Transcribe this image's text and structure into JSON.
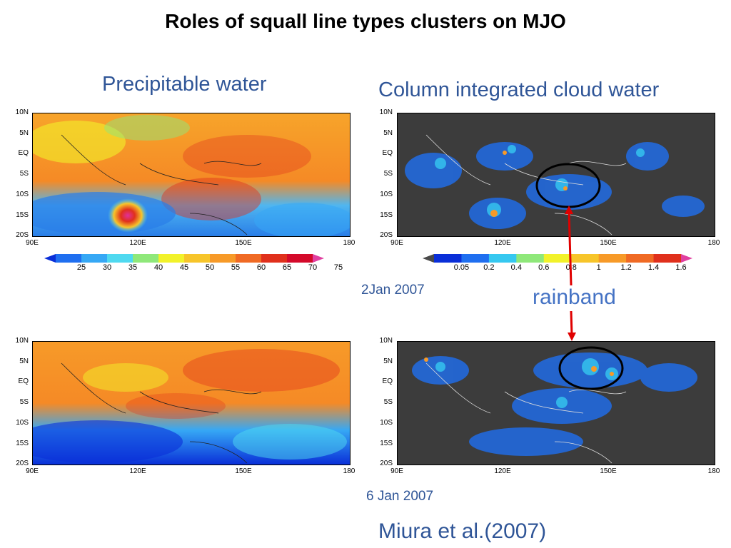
{
  "title": "Roles of squall line types clusters on MJO",
  "headings": {
    "left": "Precipitable water",
    "right": "Column integrated cloud water"
  },
  "axis": {
    "lat_labels": [
      "10N",
      "5N",
      "EQ",
      "5S",
      "10S",
      "15S",
      "20S"
    ],
    "lon_labels": [
      "90E",
      "120E",
      "150E",
      "180"
    ]
  },
  "colorbars": {
    "pw": {
      "labels": [
        "25",
        "30",
        "35",
        "40",
        "45",
        "50",
        "55",
        "60",
        "65",
        "70",
        "75"
      ],
      "colors": [
        "#0a2fd8",
        "#1f6ff0",
        "#36a8f5",
        "#4fd9f0",
        "#8fe87a",
        "#f2f22a",
        "#f7c52a",
        "#f79a28",
        "#f06a24",
        "#e0301c",
        "#d40a2a",
        "#e040a0"
      ]
    },
    "cw": {
      "labels": [
        "0.05",
        "0.2",
        "0.4",
        "0.6",
        "0.8",
        "1",
        "1.2",
        "1.4",
        "1.6"
      ],
      "colors": [
        "#4a4a4a",
        "#0a2fd8",
        "#1f6ff0",
        "#36c8f0",
        "#8fe87a",
        "#f2f22a",
        "#f7c52a",
        "#f79a28",
        "#f06a24",
        "#e0301c",
        "#e040a0"
      ]
    }
  },
  "dates": {
    "top": "2Jan 2007",
    "bottom": "6 Jan 2007"
  },
  "annotation": {
    "rainband": "rainband",
    "arrow_color": "#e00000",
    "ellipse_color": "#000000"
  },
  "citation": "Miura et al.(2007)"
}
